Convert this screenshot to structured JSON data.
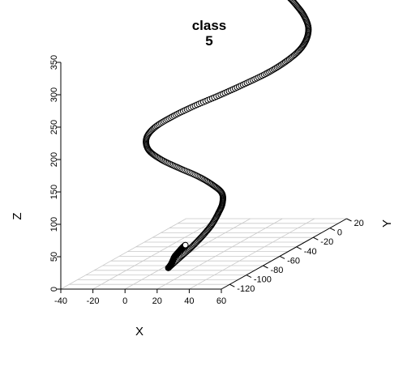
{
  "chart_data": {
    "type": "scatter",
    "projection": "3d",
    "title": [
      "class",
      "5"
    ],
    "xlabel": "X",
    "ylabel": "Y",
    "zlabel": "Z",
    "xlim": [
      -40,
      60
    ],
    "ylim": [
      -130,
      20
    ],
    "zlim": [
      0,
      350
    ],
    "x_ticks": [
      "-40",
      "-20",
      "0",
      "20",
      "40",
      "60"
    ],
    "y_ticks": [
      "-120",
      "-100",
      "-80",
      "-60",
      "-40",
      "-20",
      "0",
      "20"
    ],
    "z_ticks": [
      "0",
      "50",
      "100",
      "150",
      "200",
      "250",
      "300",
      "350"
    ],
    "grid": true,
    "marker": "open-circle",
    "marker_color": "#000000",
    "fill_color": "#ffffff",
    "series": [
      {
        "points": [
          [
            15,
            -107,
            16
          ],
          [
            22,
            -106,
            32
          ],
          [
            29,
            -105,
            48
          ],
          [
            35,
            -104,
            64
          ],
          [
            40,
            -103,
            80
          ],
          [
            43,
            -101,
            96
          ],
          [
            43,
            -96,
            108
          ],
          [
            40,
            -91,
            120
          ],
          [
            32,
            -87,
            130
          ],
          [
            21,
            -83,
            140
          ],
          [
            7,
            -79,
            150
          ],
          [
            -6,
            -75,
            160
          ],
          [
            -16,
            -71,
            172
          ],
          [
            -20,
            -66,
            186
          ],
          [
            -17,
            -62,
            200
          ],
          [
            -8,
            -58,
            214
          ],
          [
            4,
            -54,
            228
          ],
          [
            18,
            -50,
            242
          ],
          [
            31,
            -46,
            256
          ],
          [
            43,
            -42,
            270
          ],
          [
            52,
            -38,
            284
          ],
          [
            58,
            -33,
            298
          ],
          [
            60,
            -28,
            312
          ],
          [
            58,
            -22,
            326
          ],
          [
            52,
            -16,
            340
          ],
          [
            44,
            -10,
            352
          ],
          [
            35,
            -4,
            364
          ],
          [
            28,
            2,
            374
          ]
        ]
      },
      {
        "points": [
          [
            15,
            -107,
            16
          ],
          [
            12,
            -98,
            15
          ],
          [
            8,
            -88,
            14
          ],
          [
            4,
            -78,
            13
          ],
          [
            1,
            -68,
            12
          ],
          [
            -2,
            -58,
            11
          ],
          [
            -4,
            -50,
            10
          ]
        ]
      }
    ]
  }
}
